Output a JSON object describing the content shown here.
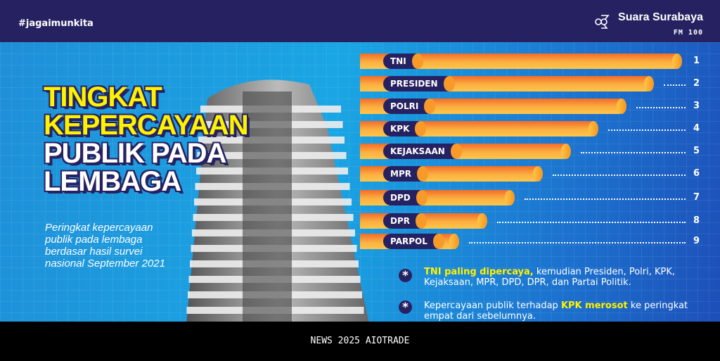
{
  "header": {
    "hashtag": "#jagaimunkita",
    "brand": "Suara Surabaya",
    "brand_sub": "FM 100"
  },
  "title": {
    "line1": "TINGKAT",
    "line2": "KEPERCAYAAN",
    "line3": "PUBLIK PADA",
    "line4": "LEMBAGA"
  },
  "subtitle": "Peringkat kepercayaan publik pada lembaga berdasar hasil survei nasional September 2021",
  "chart_data": {
    "type": "bar",
    "orientation": "horizontal",
    "categories": [
      "TNI",
      "PRESIDEN",
      "POLRI",
      "KPK",
      "KEJAKSAAN",
      "MPR",
      "DPD",
      "DPR",
      "PARPOL"
    ],
    "ranks": [
      1,
      2,
      3,
      4,
      5,
      6,
      7,
      8,
      9
    ],
    "bar_color": "#fbb040",
    "label_color": "#262262"
  },
  "notes": [
    {
      "highlight": "TNI paling dipercaya,",
      "text": " kemudian Presiden, Polri, KPK, Kejaksaan, MPR, DPD, DPR, dan Partai Politik."
    },
    {
      "pre": "Kepercayaan publik terhadap ",
      "highlight": "KPK merosot",
      "text": " ke peringkat empat dari sebelumnya."
    }
  ],
  "footer": "NEWS 2025 AIOTRADE"
}
